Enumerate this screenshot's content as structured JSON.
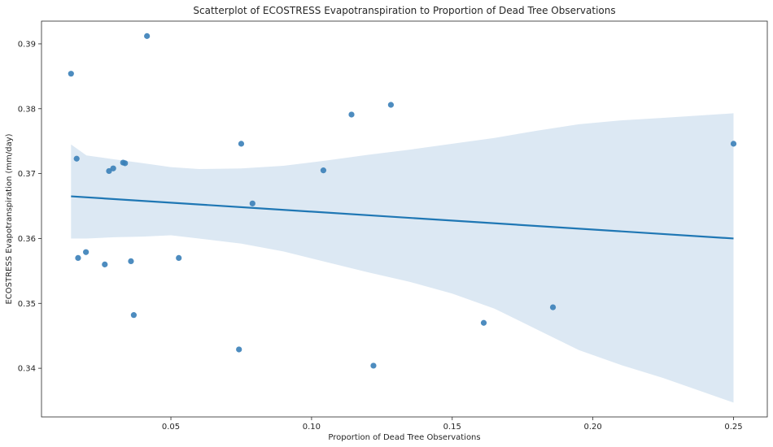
{
  "chart_data": {
    "type": "scatter",
    "title": "Scatterplot of ECOSTRESS Evapotranspiration to Proportion of Dead Tree Observations",
    "xlabel": "Proportion of Dead Tree Observations",
    "ylabel": "ECOSTRESS Evapotranspiration (mm/day)",
    "xlim": [
      0.004,
      0.262
    ],
    "ylim": [
      0.3325,
      0.3935
    ],
    "xticks": [
      0.05,
      0.1,
      0.15,
      0.2,
      0.25
    ],
    "xtick_labels": [
      "0.05",
      "0.10",
      "0.15",
      "0.20",
      "0.25"
    ],
    "yticks": [
      0.34,
      0.35,
      0.36,
      0.37,
      0.38,
      0.39
    ],
    "ytick_labels": [
      "0.34",
      "0.35",
      "0.36",
      "0.37",
      "0.38",
      "0.39"
    ],
    "grid": false,
    "colors": {
      "points": "#3a7fb8",
      "regression_line": "#1f77b4",
      "confidence_band": "#c9dbec"
    },
    "points": [
      {
        "x": 0.0145,
        "y": 0.3854
      },
      {
        "x": 0.0165,
        "y": 0.3723
      },
      {
        "x": 0.017,
        "y": 0.357
      },
      {
        "x": 0.0198,
        "y": 0.3579
      },
      {
        "x": 0.0265,
        "y": 0.356
      },
      {
        "x": 0.028,
        "y": 0.3704
      },
      {
        "x": 0.0295,
        "y": 0.3708
      },
      {
        "x": 0.033,
        "y": 0.3717
      },
      {
        "x": 0.0337,
        "y": 0.3716
      },
      {
        "x": 0.0358,
        "y": 0.3565
      },
      {
        "x": 0.0368,
        "y": 0.3482
      },
      {
        "x": 0.0415,
        "y": 0.3912
      },
      {
        "x": 0.0528,
        "y": 0.357
      },
      {
        "x": 0.0742,
        "y": 0.3429
      },
      {
        "x": 0.075,
        "y": 0.3746
      },
      {
        "x": 0.079,
        "y": 0.3654
      },
      {
        "x": 0.1042,
        "y": 0.3705
      },
      {
        "x": 0.1142,
        "y": 0.3791
      },
      {
        "x": 0.122,
        "y": 0.3404
      },
      {
        "x": 0.1282,
        "y": 0.3806
      },
      {
        "x": 0.1612,
        "y": 0.347
      },
      {
        "x": 0.1858,
        "y": 0.3494
      },
      {
        "x": 0.25,
        "y": 0.3746
      }
    ],
    "regression": {
      "x": [
        0.0145,
        0.25
      ],
      "y": [
        0.3665,
        0.36
      ]
    },
    "confidence_band": {
      "x": [
        0.0145,
        0.02,
        0.03,
        0.04,
        0.05,
        0.06,
        0.075,
        0.09,
        0.105,
        0.12,
        0.135,
        0.15,
        0.165,
        0.18,
        0.195,
        0.21,
        0.225,
        0.25
      ],
      "upper": [
        0.3745,
        0.3728,
        0.3722,
        0.3716,
        0.371,
        0.3707,
        0.3708,
        0.3712,
        0.372,
        0.3729,
        0.3737,
        0.3746,
        0.3755,
        0.3766,
        0.3776,
        0.3782,
        0.3786,
        0.3793
      ],
      "lower": [
        0.36,
        0.36,
        0.3602,
        0.3603,
        0.3605,
        0.36,
        0.3592,
        0.358,
        0.3564,
        0.3548,
        0.3533,
        0.3515,
        0.3492,
        0.346,
        0.3428,
        0.3405,
        0.3385,
        0.3347
      ]
    }
  }
}
